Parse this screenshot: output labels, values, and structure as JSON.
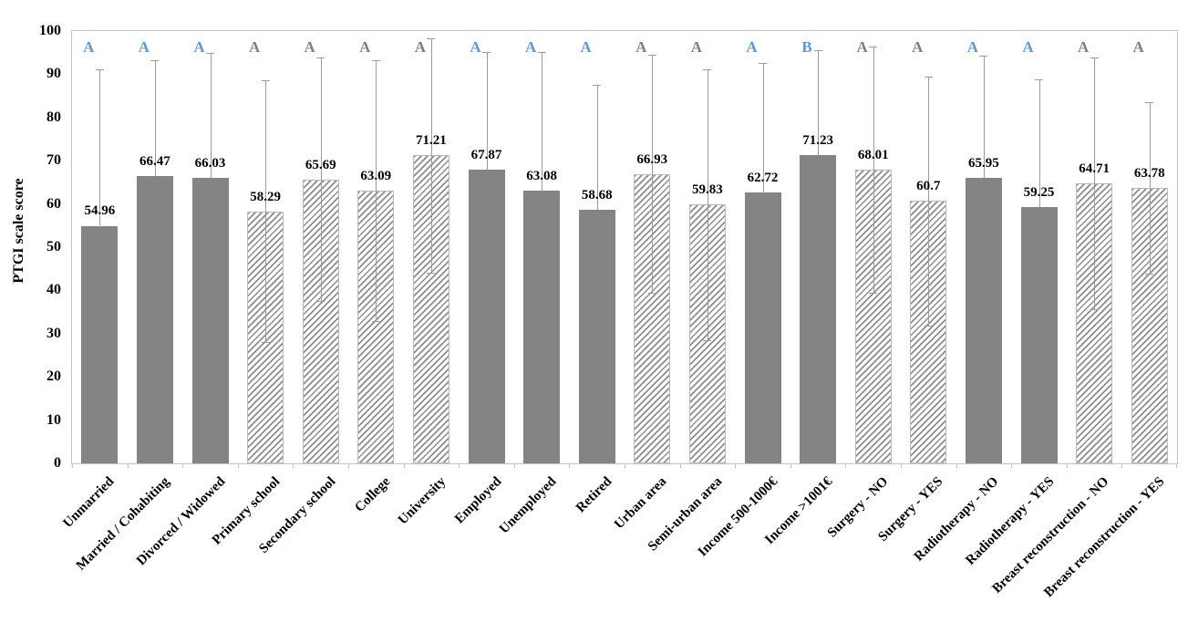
{
  "chart_data": {
    "type": "bar",
    "title": "",
    "xlabel": "",
    "ylabel": "PTGI scale score",
    "ylim": [
      0,
      100
    ],
    "ytick_step": 10,
    "grid": false,
    "legend": "none",
    "categories": [
      "Unmarried",
      "Married / Cohabiting",
      "Divorced / Widowed",
      "Primary school",
      "Secondary school",
      "College",
      "University",
      "Employed",
      "Unemployed",
      "Retired",
      "Urban area",
      "Semi-urban area",
      "Income 500-1000€",
      "Income >1001€",
      "Surgery - NO",
      "Surgery - YES",
      "Radiotherapy - NO",
      "Radiotherapy - YES",
      "Breast reconstruction - NO",
      "Breast reconstruction - YES"
    ],
    "values": [
      54.96,
      66.47,
      66.03,
      58.29,
      65.69,
      63.09,
      71.21,
      67.87,
      63.08,
      58.68,
      66.93,
      59.83,
      62.72,
      71.23,
      68.01,
      60.7,
      65.95,
      59.25,
      64.71,
      63.78
    ],
    "value_labels": [
      "54.96",
      "66.47",
      "66.03",
      "58.29",
      "65.69",
      "63.09",
      "71.21",
      "67.87",
      "63.08",
      "58.68",
      "66.93",
      "59.83",
      "62.72",
      "71.23",
      "68.01",
      "60.7",
      "65.95",
      "59.25",
      "64.71",
      "63.78"
    ],
    "errors_estimated": [
      36.1,
      26.8,
      28.9,
      30.3,
      28.2,
      30.2,
      27.1,
      27.2,
      32.1,
      28.9,
      27.5,
      31.4,
      29.8,
      24.4,
      28.5,
      28.8,
      28.4,
      29.6,
      29.1,
      19.8
    ],
    "bar_patterns": [
      "solid",
      "solid",
      "solid",
      "hatch",
      "hatch",
      "hatch",
      "hatch",
      "solid",
      "solid",
      "solid",
      "hatch",
      "hatch",
      "solid",
      "solid",
      "hatch",
      "hatch",
      "solid",
      "solid",
      "hatch",
      "hatch"
    ],
    "significance_letters": [
      "A",
      "A",
      "A",
      "A",
      "A",
      "A",
      "A",
      "A",
      "A",
      "A",
      "A",
      "A",
      "A",
      "B",
      "A",
      "A",
      "A",
      "A",
      "A",
      "A"
    ],
    "letter_colors": [
      "blue",
      "blue",
      "blue",
      "gray",
      "gray",
      "gray",
      "gray",
      "blue",
      "blue",
      "blue",
      "gray",
      "gray",
      "blue",
      "blue",
      "gray",
      "gray",
      "blue",
      "blue",
      "gray",
      "gray"
    ],
    "colors": {
      "bar_solid": "#848484",
      "hatch_stripe": "#8d8d8d",
      "hatch_background": "#ffffff",
      "error_bar": "#9b9b9b",
      "letter_blue": "#5B9BD5",
      "letter_gray": "#7f7f7f",
      "axis_border": "#c3c3c3",
      "text": "#000000"
    }
  }
}
